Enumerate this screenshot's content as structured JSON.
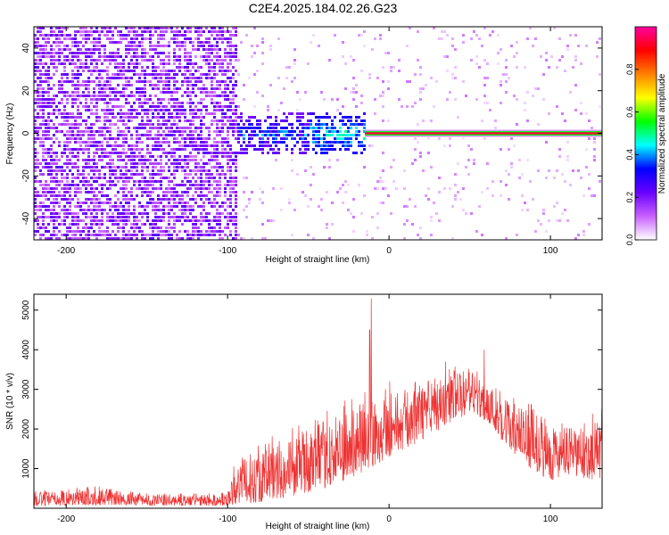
{
  "title": "C2E4.2025.184.02.26.G23",
  "chart_data": [
    {
      "type": "heatmap",
      "xlabel": "Height of straight line (km)",
      "ylabel": "Frequency (Hz)",
      "xlim": [
        -220,
        132
      ],
      "ylim": [
        -50,
        50
      ],
      "x_ticks": [
        {
          "value": -200,
          "label": "-200"
        },
        {
          "value": -100,
          "label": "-100"
        },
        {
          "value": 0,
          "label": "0"
        },
        {
          "value": 100,
          "label": "100"
        }
      ],
      "y_ticks": [
        {
          "value": 40,
          "label": "40"
        },
        {
          "value": 20,
          "label": "20"
        },
        {
          "value": 0,
          "label": "0"
        },
        {
          "value": -20,
          "label": "-20"
        },
        {
          "value": -40,
          "label": "-40"
        }
      ],
      "colorbar": {
        "label": "Normalized spectral amplitude",
        "range": [
          0,
          1
        ],
        "ticks": [
          {
            "value": 0.0,
            "label": "0.0"
          },
          {
            "value": 0.2,
            "label": "0.2"
          },
          {
            "value": 0.4,
            "label": "0.4"
          },
          {
            "value": 0.6,
            "label": "0.6"
          },
          {
            "value": 0.8,
            "label": "0.8"
          }
        ],
        "colors": [
          "#ffffff",
          "#c860ff",
          "#6a00ff",
          "#0000ff",
          "#00ffff",
          "#00ff00",
          "#ffff00",
          "#ff8000",
          "#ff0000",
          "#ff00a0"
        ]
      },
      "regions": [
        {
          "x_range": [
            -220,
            -95
          ],
          "freq_range": [
            -50,
            50
          ],
          "level": 0.2
        },
        {
          "x_range": [
            -135,
            -115
          ],
          "freq_range": [
            -8,
            8
          ],
          "level": 0.25
        },
        {
          "x_range": [
            -95,
            -15
          ],
          "freq_range": [
            -10,
            10
          ],
          "level": 0.4
        },
        {
          "x_range": [
            -95,
            132
          ],
          "freq_range": [
            -50,
            50
          ],
          "level": 0.05
        },
        {
          "x_range": [
            -15,
            132
          ],
          "freq_range": [
            -1,
            1
          ],
          "level": 0.95
        }
      ]
    },
    {
      "type": "line",
      "xlabel": "Height of straight line (km)",
      "ylabel": "SNR (10 * v/v)",
      "xlim": [
        -220,
        132
      ],
      "ylim": [
        0,
        5400
      ],
      "color": "#ee3333",
      "x_ticks": [
        {
          "value": -200,
          "label": "-200"
        },
        {
          "value": -100,
          "label": "-100"
        },
        {
          "value": 0,
          "label": "0"
        },
        {
          "value": 100,
          "label": "100"
        }
      ],
      "y_ticks": [
        {
          "value": 1000,
          "label": "1000"
        },
        {
          "value": 2000,
          "label": "2000"
        },
        {
          "value": 3000,
          "label": "3000"
        },
        {
          "value": 4000,
          "label": "4000"
        },
        {
          "value": 5000,
          "label": "5000"
        }
      ],
      "envelope": {
        "x": [
          -220,
          -180,
          -150,
          -100,
          -95,
          -80,
          -60,
          -40,
          -20,
          -10,
          0,
          20,
          40,
          50,
          60,
          80,
          100,
          110,
          132
        ],
        "low": [
          50,
          80,
          60,
          60,
          100,
          150,
          300,
          500,
          800,
          1000,
          1300,
          1700,
          2200,
          2400,
          2200,
          1200,
          700,
          800,
          700
        ],
        "high": [
          400,
          500,
          350,
          350,
          1200,
          1500,
          1800,
          2200,
          2600,
          2900,
          3000,
          3000,
          3400,
          3500,
          3200,
          2600,
          2200,
          2000,
          2300
        ]
      },
      "peaks": [
        {
          "x": -11,
          "value": 5300
        },
        {
          "x": -12,
          "value": 4500
        },
        {
          "x": 59,
          "value": 4000
        },
        {
          "x": 35,
          "value": 3700
        }
      ]
    }
  ]
}
